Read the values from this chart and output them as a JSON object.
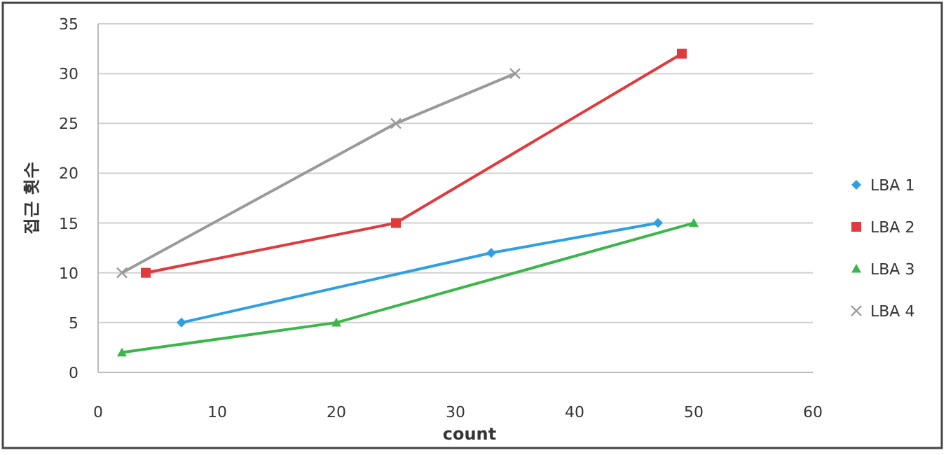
{
  "chart_data": {
    "type": "line",
    "xlabel": "count",
    "ylabel": "접근 횟수",
    "xlim": [
      0,
      60
    ],
    "xticks": [
      0,
      10,
      20,
      30,
      40,
      50,
      60
    ],
    "ylim": [
      0,
      35
    ],
    "yticks": [
      0,
      5,
      10,
      15,
      20,
      25,
      30,
      35
    ],
    "grid": "y",
    "legend": "right",
    "line_style": "solid",
    "series": [
      {
        "name": "LBA 1",
        "color": "#2e9fe0",
        "marker": "diamond",
        "x": [
          7,
          33,
          47
        ],
        "values": [
          5,
          12,
          15
        ]
      },
      {
        "name": "LBA 2",
        "color": "#e0393e",
        "marker": "square",
        "x": [
          4,
          25,
          49
        ],
        "values": [
          10,
          15,
          32
        ]
      },
      {
        "name": "LBA 3",
        "color": "#3cb64a",
        "marker": "triangle",
        "x": [
          2,
          20,
          50
        ],
        "values": [
          2,
          5,
          15
        ]
      },
      {
        "name": "LBA 4",
        "color": "#9a9a9a",
        "marker": "cross",
        "x": [
          2,
          25,
          35
        ],
        "values": [
          10,
          25,
          30
        ]
      }
    ]
  }
}
